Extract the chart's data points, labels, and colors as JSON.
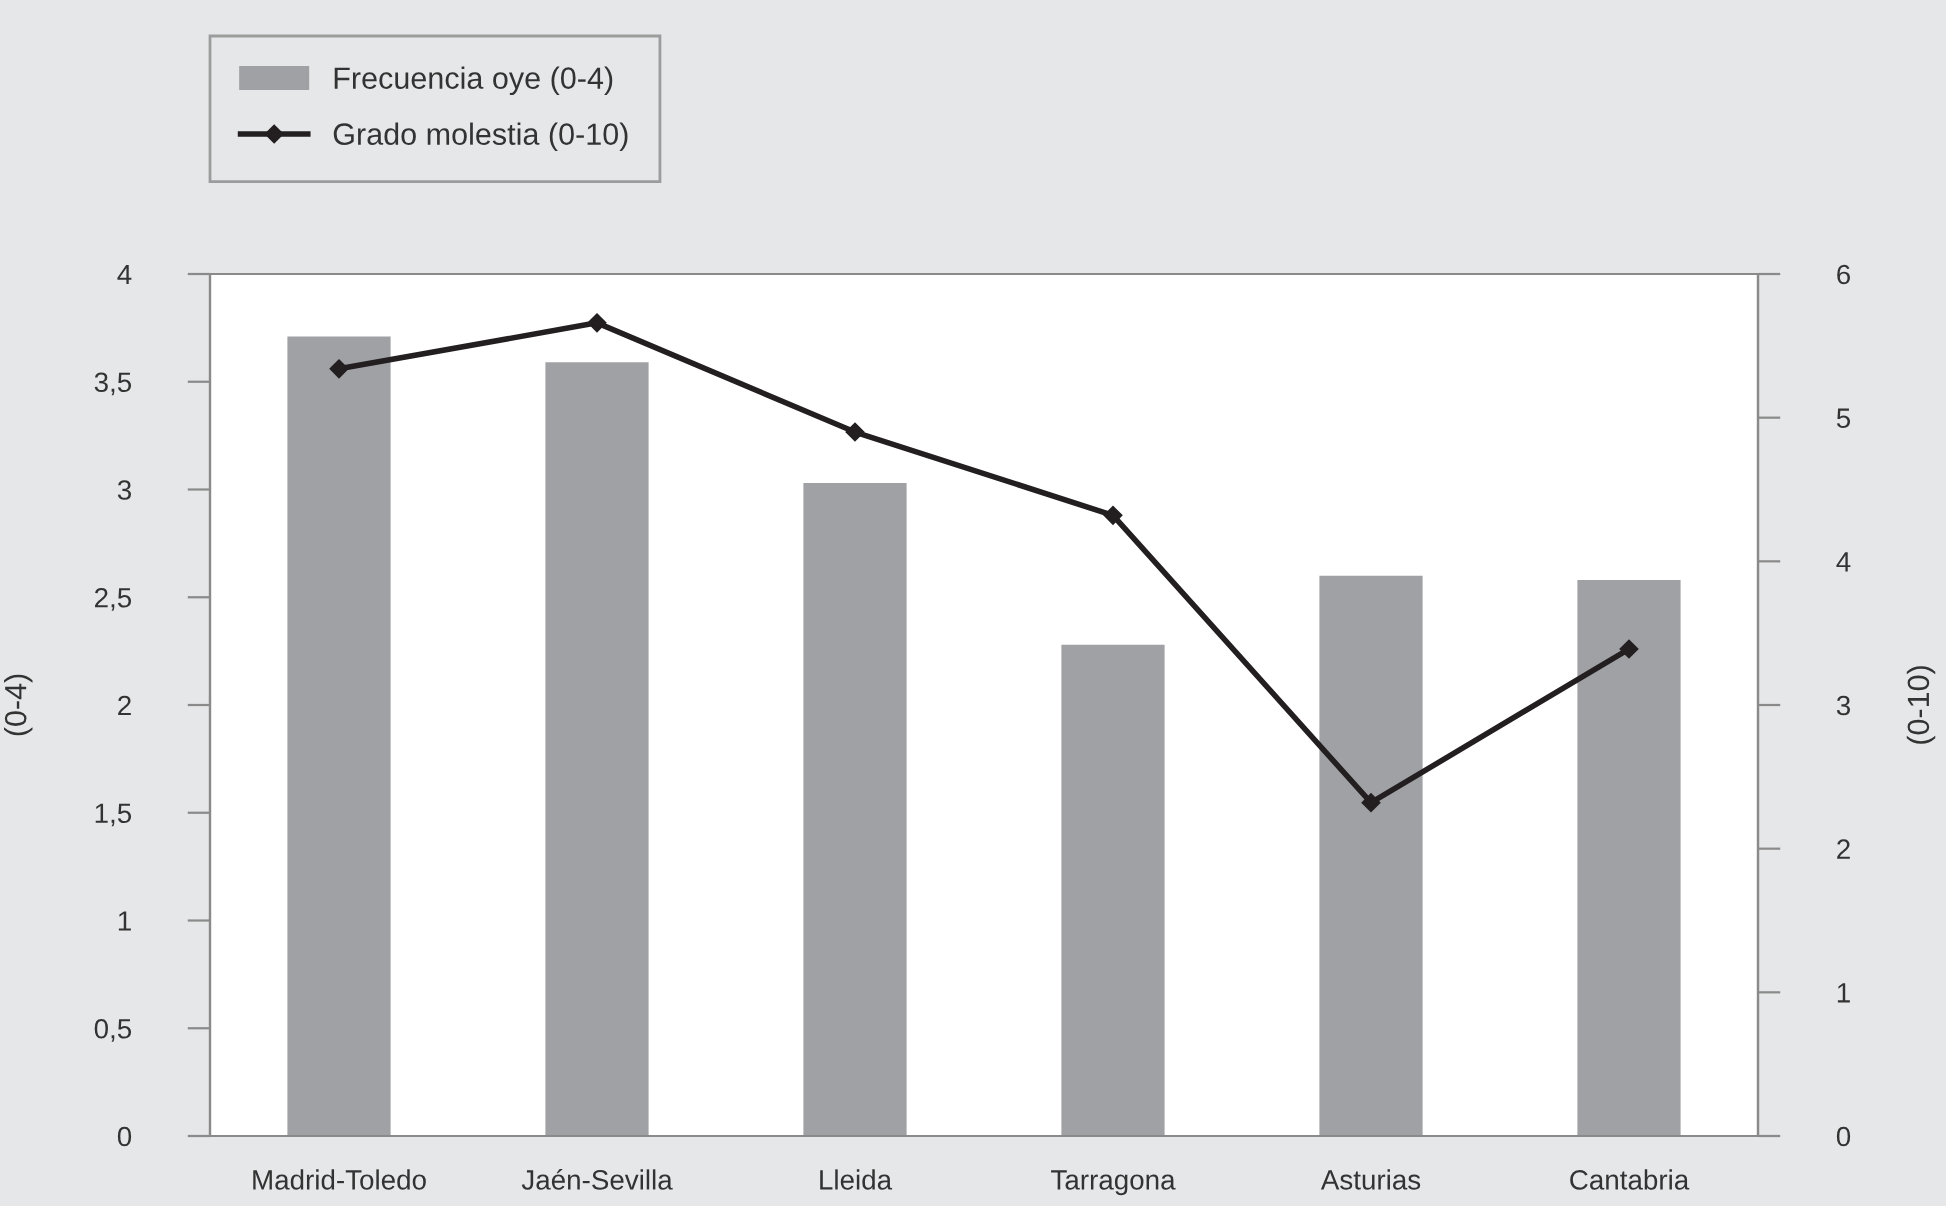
{
  "chart_data": {
    "type": "bar",
    "categories": [
      "Madrid-Toledo",
      "Jaén-Sevilla",
      "Lleida",
      "Tarragona",
      "Asturias",
      "Cantabria"
    ],
    "series": [
      {
        "name": "Frecuencia oye (0-4)",
        "color": "#a0a1a5",
        "values": [
          3.71,
          3.59,
          3.03,
          2.28,
          2.6,
          2.58
        ]
      },
      {
        "name": "Grado molestia (0-10)",
        "type": "line",
        "axis": "y2",
        "color": "#231f20",
        "marker": "diamond",
        "values": [
          5.34,
          5.66,
          4.9,
          4.32,
          2.32,
          3.39
        ]
      }
    ],
    "ylabel": "(0-4)",
    "y2label": "(0-10)",
    "ylim": [
      0,
      4
    ],
    "yticks": [
      0,
      {
        "value": 0.5,
        "label": "0,5"
      },
      1,
      {
        "value": 1.5,
        "label": "1,5"
      },
      2,
      {
        "value": 2.5,
        "label": "2,5"
      },
      3,
      {
        "value": 3.5,
        "label": "3,5"
      },
      4
    ],
    "y2lim": [
      0,
      6
    ],
    "y2ticks": [
      0,
      1,
      2,
      3,
      4,
      5,
      6
    ],
    "grid": false,
    "legend": "top left"
  }
}
